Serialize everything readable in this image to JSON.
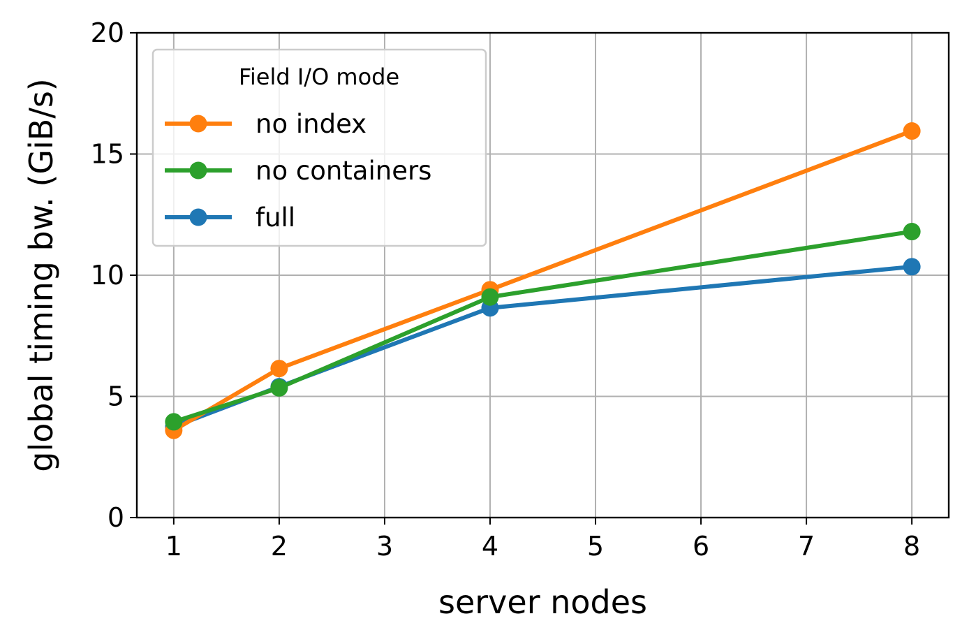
{
  "chart_data": {
    "type": "line",
    "title": "",
    "xlabel": "server nodes",
    "ylabel": "global timing bw. (GiB/s)",
    "xlim": [
      0.65,
      8.35
    ],
    "ylim": [
      0,
      20
    ],
    "xticks": [
      1,
      2,
      3,
      4,
      5,
      6,
      7,
      8
    ],
    "yticks": [
      0,
      5,
      10,
      15,
      20
    ],
    "grid": true,
    "legend": {
      "title": "Field I/O mode",
      "placement": "upper-left",
      "order": [
        "no index",
        "no containers",
        "full"
      ]
    },
    "x": [
      1,
      2,
      4,
      8
    ],
    "series": [
      {
        "name": "full",
        "color": "#1f77b4",
        "values": [
          3.75,
          5.4,
          8.65,
          10.35
        ]
      },
      {
        "name": "no index",
        "color": "#ff7f0e",
        "values": [
          3.6,
          6.15,
          9.4,
          15.95
        ]
      },
      {
        "name": "no containers",
        "color": "#2ca02c",
        "values": [
          3.95,
          5.35,
          9.1,
          11.8
        ]
      }
    ]
  }
}
